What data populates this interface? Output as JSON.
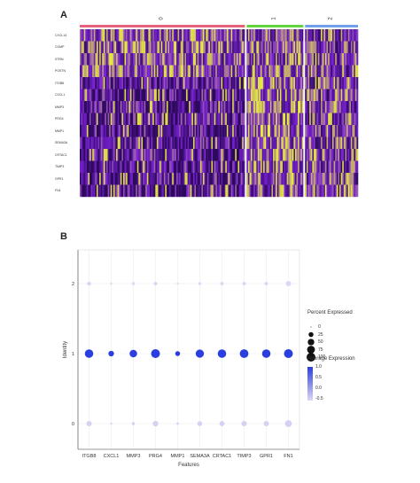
{
  "panels": {
    "a": "A",
    "b": "B"
  },
  "chart_data": [
    {
      "type": "heatmap",
      "clusters": [
        {
          "name": "0",
          "color": "#e4637a",
          "fraction": 0.6
        },
        {
          "name": "1",
          "color": "#64d43e",
          "fraction": 0.21
        },
        {
          "name": "2",
          "color": "#6fa0e8",
          "fraction": 0.19
        }
      ],
      "genes": [
        "CXCL14",
        "COMP",
        "STRN",
        "POSTN",
        "ITGB8",
        "CXCL1",
        "MMP3",
        "PRG4",
        "MMP1",
        "SEMA3A",
        "CRTAC1",
        "TIMP3",
        "GPR1",
        "FN1"
      ],
      "color_scale": {
        "low": "#2d0a5a",
        "mid": "#7a22d6",
        "high": "#e8f03a"
      }
    },
    {
      "type": "scatter",
      "subtype": "dotplot",
      "xlabel": "Features",
      "ylabel": "Identity",
      "categories": [
        "ITGB8",
        "CXCL1",
        "MMP3",
        "PRG4",
        "MMP1",
        "SEMA3A",
        "CRTAC1",
        "TIMP3",
        "GPR1",
        "FN1"
      ],
      "identities": [
        "0",
        "1",
        "2"
      ],
      "series": [
        {
          "identity": "2",
          "percent": [
            15,
            2,
            8,
            12,
            2,
            6,
            9,
            10,
            10,
            30
          ],
          "avg_expr": [
            -0.6,
            -0.6,
            -0.6,
            -0.6,
            -0.6,
            -0.6,
            -0.6,
            -0.6,
            -0.6,
            -0.6
          ]
        },
        {
          "identity": "1",
          "percent": [
            90,
            35,
            70,
            100,
            25,
            85,
            90,
            95,
            90,
            100
          ],
          "avg_expr": [
            1.0,
            1.0,
            1.0,
            1.0,
            1.0,
            1.0,
            1.0,
            1.0,
            1.0,
            1.0
          ]
        },
        {
          "identity": "0",
          "percent": [
            30,
            2,
            8,
            35,
            4,
            25,
            28,
            32,
            30,
            55
          ],
          "avg_expr": [
            -0.55,
            -0.55,
            -0.55,
            -0.55,
            -0.55,
            -0.55,
            -0.55,
            -0.55,
            -0.55,
            -0.55
          ]
        }
      ],
      "legend_percent": {
        "title": "Percent Expressed",
        "values": [
          0,
          25,
          50,
          75,
          100
        ]
      },
      "legend_avg": {
        "title": "Average Expression",
        "ticks": [
          "1.0",
          "0.5",
          "0.0",
          "-0.5"
        ],
        "low_color": "#dcd6f5",
        "high_color": "#2b3fe0",
        "range": [
          -0.6,
          1.0
        ]
      }
    }
  ]
}
